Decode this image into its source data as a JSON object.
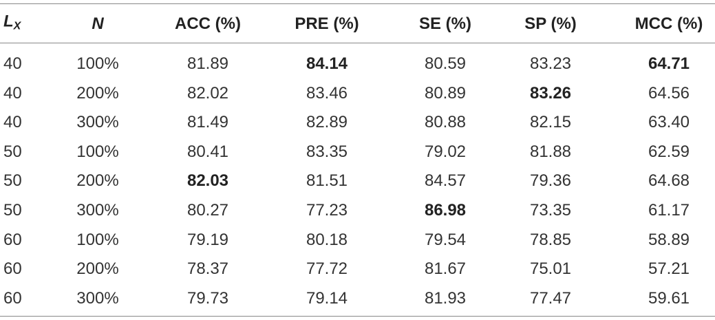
{
  "table": {
    "header": [
      {
        "main": "L",
        "sub": "X"
      },
      "N",
      "ACC (%)",
      "PRE (%)",
      "SE (%)",
      "SP (%)",
      "MCC (%)"
    ],
    "rows": [
      [
        "40",
        "100%",
        "81.89",
        {
          "text": "84.14",
          "bold": true
        },
        "80.59",
        "83.23",
        {
          "text": "64.71",
          "bold": true
        }
      ],
      [
        "40",
        "200%",
        "82.02",
        "83.46",
        "80.89",
        {
          "text": "83.26",
          "bold": true
        },
        "64.56"
      ],
      [
        "40",
        "300%",
        "81.49",
        "82.89",
        "80.88",
        "82.15",
        "63.40"
      ],
      [
        "50",
        "100%",
        "80.41",
        "83.35",
        "79.02",
        "81.88",
        "62.59"
      ],
      [
        "50",
        "200%",
        {
          "text": "82.03",
          "bold": true
        },
        "81.51",
        "84.57",
        "79.36",
        "64.68"
      ],
      [
        "50",
        "300%",
        "80.27",
        "77.23",
        {
          "text": "86.98",
          "bold": true
        },
        "73.35",
        "61.17"
      ],
      [
        "60",
        "100%",
        "79.19",
        "80.18",
        "79.54",
        "78.85",
        "58.89"
      ],
      [
        "60",
        "200%",
        "78.37",
        "77.72",
        "81.67",
        "75.01",
        "57.21"
      ],
      [
        "60",
        "300%",
        "79.73",
        "79.14",
        "81.93",
        "77.47",
        "59.61"
      ]
    ]
  }
}
